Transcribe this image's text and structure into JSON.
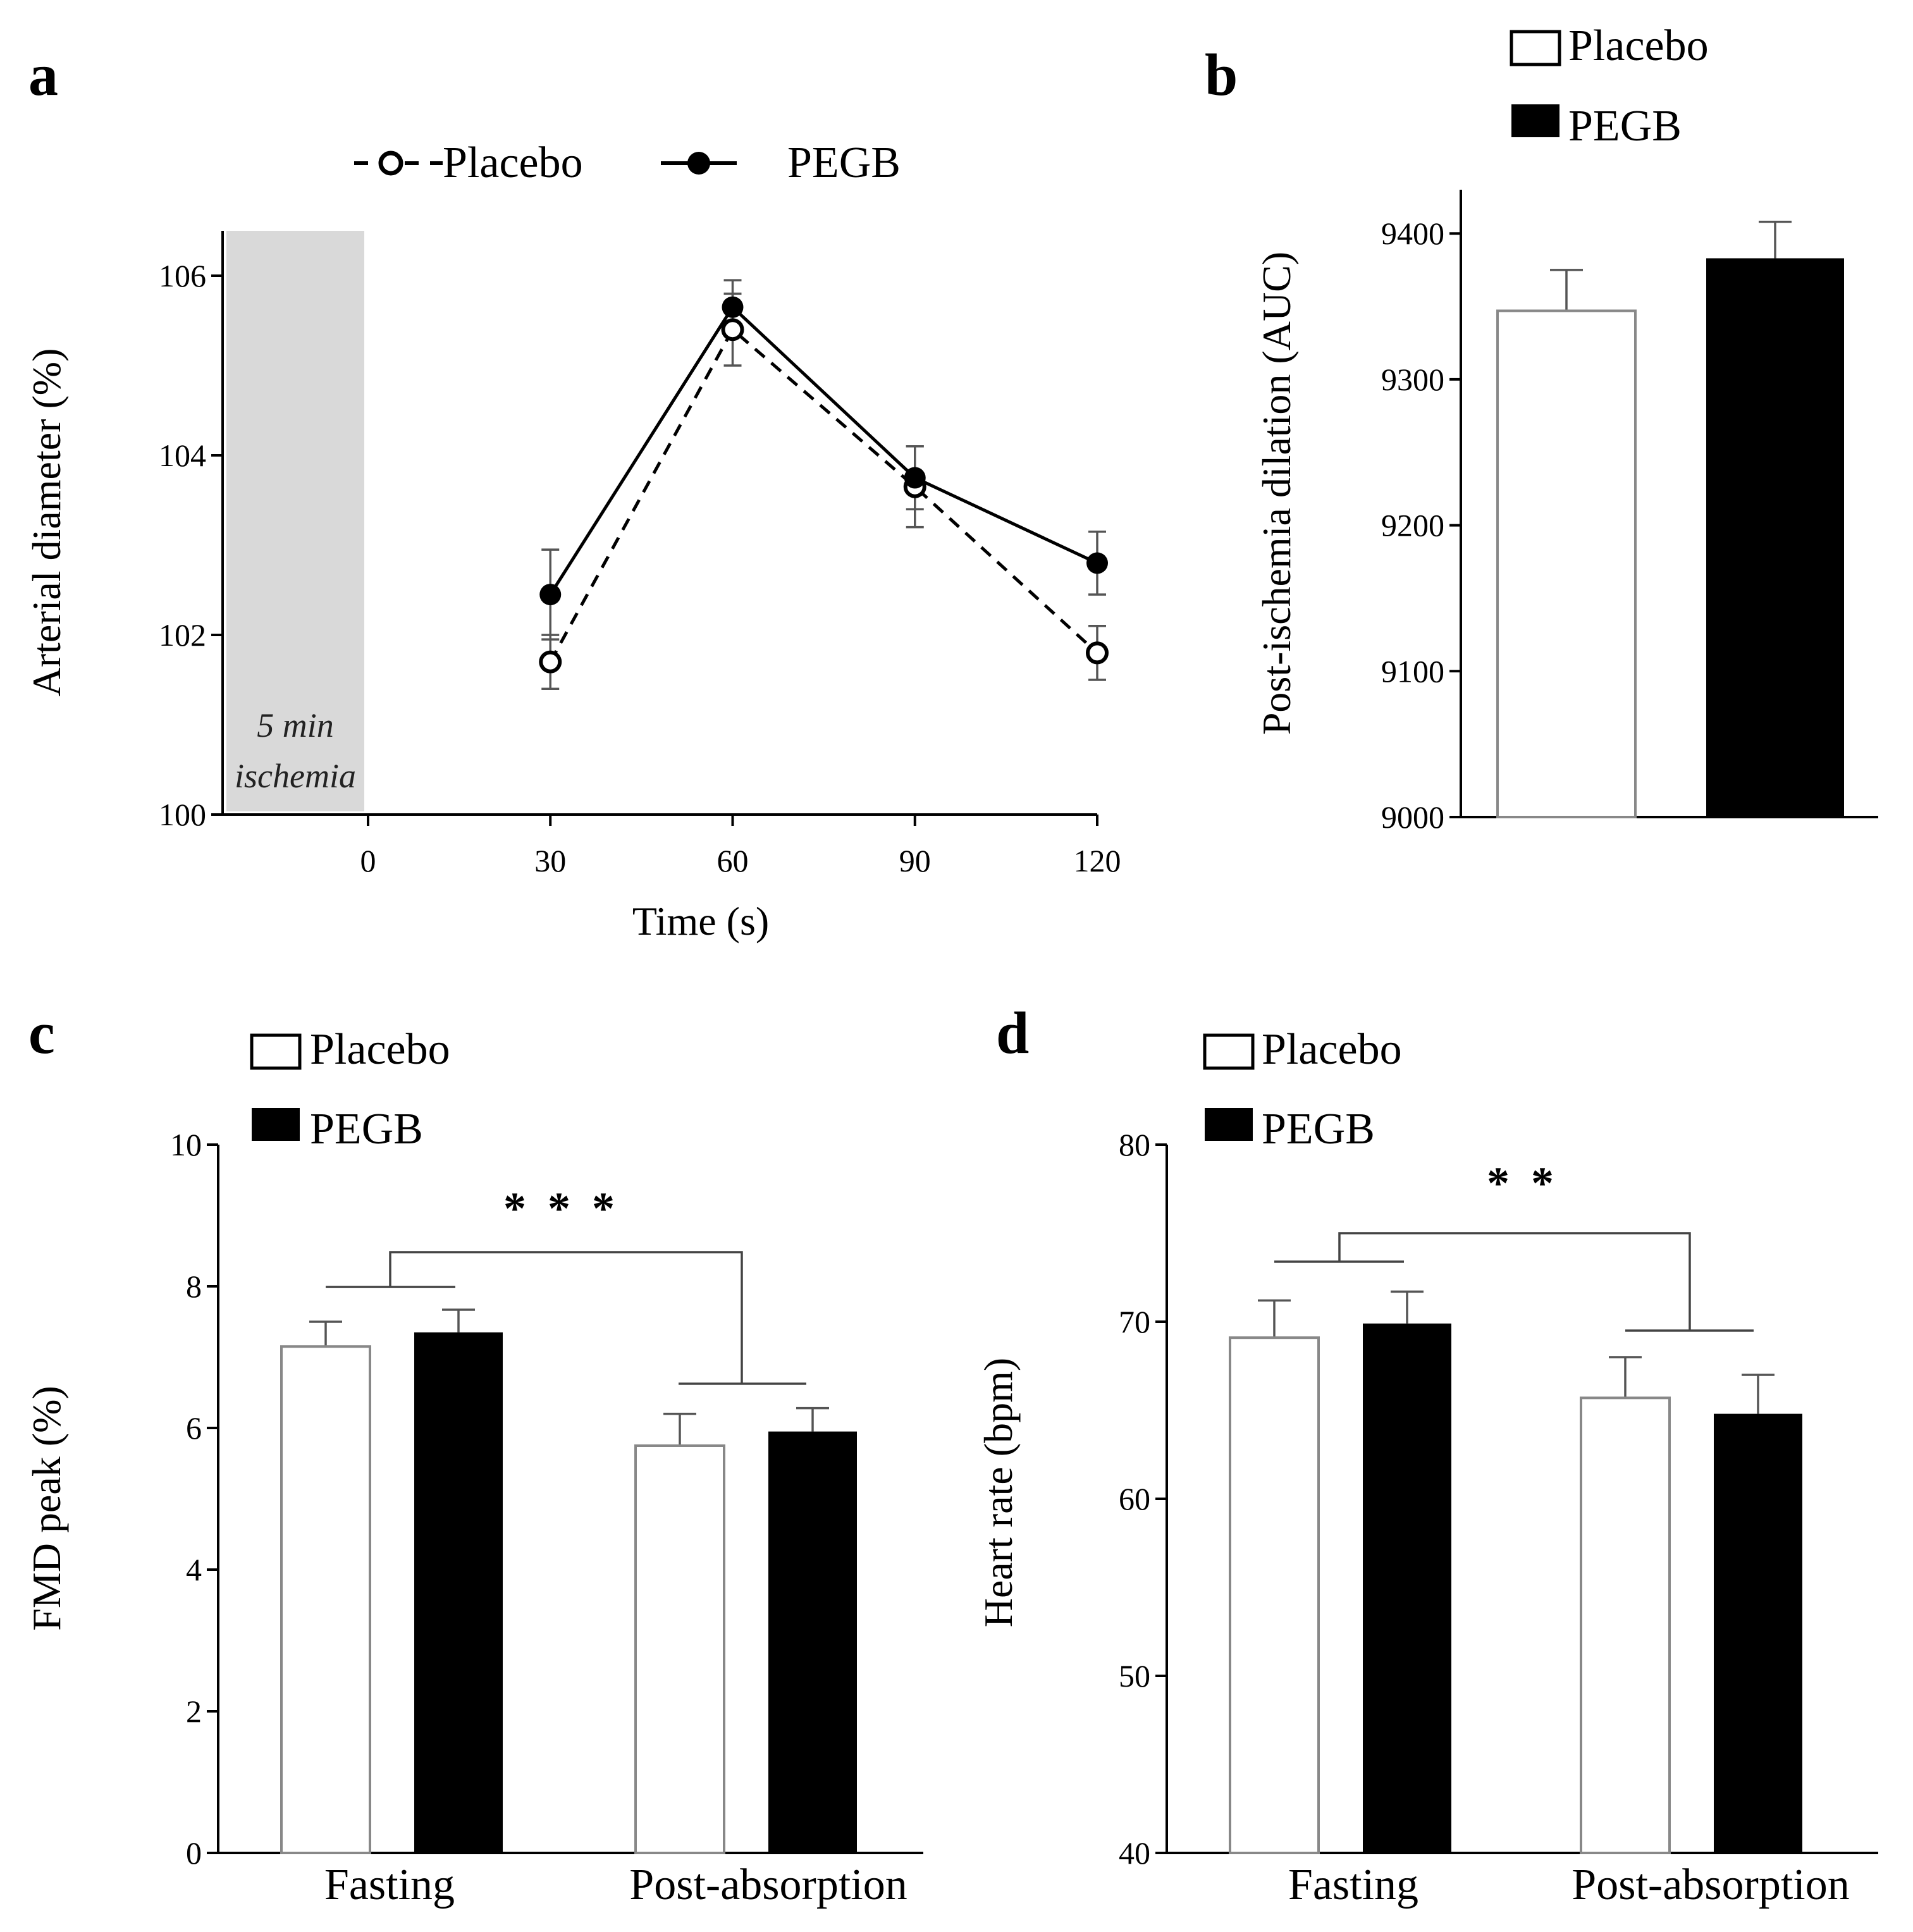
{
  "colors": {
    "placebo_fill": "#ffffff",
    "placebo_stroke": "#888888",
    "pegb_fill": "#000000",
    "ischemia_shade": "#d9d9d9"
  },
  "chart_data": [
    {
      "panel": "a",
      "type": "line",
      "legend": [
        "Placebo",
        "PEGB"
      ],
      "xlabel": "Time (s)",
      "ylabel": "Arterial diameter (%)",
      "xticks": [
        0,
        30,
        60,
        90,
        120
      ],
      "yticks": [
        100,
        102,
        104,
        106
      ],
      "ylim": [
        100,
        106.5
      ],
      "annotation": [
        "5 min",
        "ischemia"
      ],
      "x": [
        30,
        60,
        90,
        120
      ],
      "series": [
        {
          "name": "Placebo",
          "style": "dashed-open",
          "values": [
            101.7,
            105.4,
            103.65,
            101.8
          ],
          "errors": [
            0.3,
            0.4,
            0.45,
            0.3
          ]
        },
        {
          "name": "PEGB",
          "style": "solid-filled",
          "values": [
            102.45,
            105.65,
            103.75,
            102.8
          ],
          "errors": [
            0.5,
            0.3,
            0.35,
            0.35
          ]
        }
      ]
    },
    {
      "panel": "b",
      "type": "bar",
      "legend": [
        "Placebo",
        "PEGB"
      ],
      "ylabel": "Post-ischemia dilation (AUC)",
      "yticks": [
        9000,
        9100,
        9200,
        9300,
        9400
      ],
      "ylim": [
        9000,
        9430
      ],
      "categories": [
        ""
      ],
      "series": [
        {
          "name": "Placebo",
          "values": [
            9347
          ],
          "errors": [
            28
          ]
        },
        {
          "name": "PEGB",
          "values": [
            9383
          ],
          "errors": [
            25
          ]
        }
      ]
    },
    {
      "panel": "c",
      "type": "bar",
      "legend": [
        "Placebo",
        "PEGB"
      ],
      "ylabel": "FMD peak (%)",
      "yticks": [
        0,
        2,
        4,
        6,
        8,
        10
      ],
      "ylim": [
        0,
        10
      ],
      "categories": [
        "Fasting",
        "Post-absorption"
      ],
      "series": [
        {
          "name": "Placebo",
          "values": [
            7.15,
            5.75
          ],
          "errors": [
            0.35,
            0.45
          ]
        },
        {
          "name": "PEGB",
          "values": [
            7.35,
            5.95
          ],
          "errors": [
            0.32,
            0.33
          ]
        }
      ],
      "significance": "* * *"
    },
    {
      "panel": "d",
      "type": "bar",
      "legend": [
        "Placebo",
        "PEGB"
      ],
      "ylabel": "Heart rate (bpm)",
      "yticks": [
        40,
        50,
        60,
        70,
        80
      ],
      "ylim": [
        40,
        80
      ],
      "categories": [
        "Fasting",
        "Post-absorption"
      ],
      "series": [
        {
          "name": "Placebo",
          "values": [
            69.1,
            65.7
          ],
          "errors": [
            2.1,
            2.3
          ]
        },
        {
          "name": "PEGB",
          "values": [
            69.9,
            64.8
          ],
          "errors": [
            1.8,
            2.2
          ]
        }
      ],
      "significance": "* *"
    }
  ]
}
